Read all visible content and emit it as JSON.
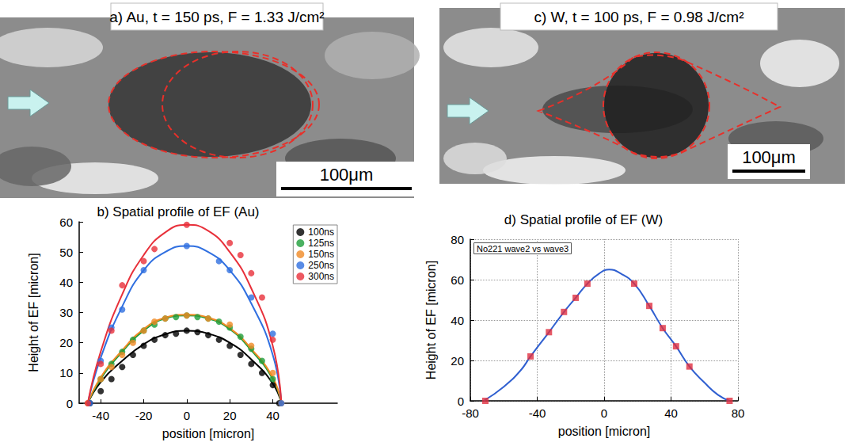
{
  "images": [
    {
      "title": "a) Au, t = 150 ps, F = 1.33 J/cm²",
      "scale_bar": "100μm"
    },
    {
      "title": "c) W, t = 100 ps, F = 0.98 J/cm²",
      "scale_bar": "100μm"
    }
  ],
  "chart_data": [
    {
      "type": "scatter",
      "title": "b) Spatial profile of EF (Au)",
      "x_label": "position [micron]",
      "y_label": "Height of EF [micron]",
      "xlim": [
        -50,
        70
      ],
      "xticks": [
        -40,
        -20,
        0,
        20,
        40
      ],
      "ylim": [
        0,
        60
      ],
      "yticks": [
        0,
        10,
        20,
        30,
        40,
        50,
        60
      ],
      "grid": false,
      "legend": "upper right",
      "marker": "circle",
      "series": [
        {
          "name": "100ns",
          "color": "#000000",
          "x": [
            -45,
            -40,
            -35,
            -30,
            -25,
            -20,
            -15,
            -10,
            -5,
            0,
            5,
            10,
            15,
            20,
            25,
            30,
            35,
            40,
            43
          ],
          "values": [
            0,
            4,
            8,
            12,
            16,
            19,
            21,
            22.5,
            23,
            24,
            23.5,
            22.5,
            21,
            19,
            16,
            13,
            10,
            6,
            0
          ],
          "fit_x": [
            -46,
            -40,
            -30,
            -20,
            -10,
            0,
            10,
            20,
            30,
            40,
            44
          ],
          "fit_values": [
            0,
            7,
            14,
            19.5,
            22.8,
            24,
            23,
            20,
            14.5,
            6.5,
            0
          ]
        },
        {
          "name": "125ns",
          "color": "#1e9e3a",
          "x": [
            -40,
            -35,
            -30,
            -25,
            -20,
            -15,
            -10,
            -5,
            0,
            5,
            10,
            15,
            20,
            25,
            30,
            35,
            40
          ],
          "values": [
            8,
            13,
            17,
            21,
            24,
            26,
            28,
            28.5,
            29,
            28.5,
            28,
            27,
            25,
            22,
            18,
            14,
            8
          ],
          "fit_x": [
            -46,
            -40,
            -30,
            -20,
            -10,
            0,
            10,
            20,
            30,
            40,
            44
          ],
          "fit_values": [
            0,
            8,
            17,
            24,
            28,
            29,
            28,
            24.5,
            17.5,
            8,
            0
          ]
        },
        {
          "name": "150ns",
          "color": "#f08a24",
          "x": [
            -46,
            -40,
            -35,
            -30,
            -25,
            -20,
            -15,
            -10,
            0,
            10,
            20,
            30,
            40,
            44
          ],
          "values": [
            0,
            8,
            12,
            16,
            20,
            24,
            27,
            28,
            29,
            28,
            26,
            19,
            10,
            0
          ],
          "fit_x": [
            -46,
            -40,
            -30,
            -20,
            -10,
            0,
            10,
            20,
            30,
            40,
            44
          ],
          "fit_values": [
            0,
            8.5,
            17.5,
            24.5,
            28.3,
            29.3,
            28.3,
            24.8,
            18,
            8.5,
            0
          ]
        },
        {
          "name": "250ns",
          "color": "#2f6fe0",
          "x": [
            -45,
            -40,
            -35,
            -30,
            -20,
            0,
            15,
            20,
            30,
            40,
            44
          ],
          "values": [
            0,
            14,
            25,
            31,
            44,
            52,
            47,
            44,
            35,
            23,
            0
          ],
          "fit_x": [
            -46,
            -40,
            -30,
            -20,
            -10,
            0,
            10,
            20,
            30,
            40,
            44
          ],
          "fit_values": [
            0,
            15,
            32,
            44,
            50,
            52,
            50,
            44,
            33,
            16,
            0
          ]
        },
        {
          "name": "300ns",
          "color": "#e8303a",
          "x": [
            -46,
            -40,
            -35,
            -30,
            -20,
            -15,
            0,
            20,
            25,
            30,
            35,
            40
          ],
          "values": [
            0,
            13,
            24,
            39,
            47,
            51,
            59,
            53,
            49,
            43,
            35,
            21
          ],
          "fit_x": [
            -46,
            -40,
            -30,
            -20,
            -10,
            0,
            10,
            20,
            30,
            40,
            44
          ],
          "fit_values": [
            0,
            17,
            36,
            49,
            56.5,
            59,
            57,
            50,
            38,
            19,
            0
          ]
        }
      ]
    },
    {
      "type": "scatter",
      "title": "d) Spatial profile of EF (W)",
      "x_label": "position [micron]",
      "y_label": "Height of EF [micron]",
      "annotation": "No221 wave2 vs wave3",
      "xlim": [
        -80,
        80
      ],
      "xticks": [
        -80,
        -40,
        0,
        40,
        80
      ],
      "ylim": [
        0,
        80
      ],
      "yticks": [
        0,
        20,
        40,
        60,
        80
      ],
      "grid": true,
      "marker": "square",
      "series": [
        {
          "color": "#e03040",
          "x": [
            -71,
            -44,
            -33,
            -24,
            -17,
            -10,
            18,
            27,
            35,
            43,
            51,
            75
          ],
          "values": [
            0,
            22,
            34,
            44,
            51,
            58,
            58,
            47,
            36,
            27,
            17,
            0
          ],
          "fit_color": "#2f5fd0",
          "fit_x": [
            -72,
            -60,
            -50,
            -44,
            -33,
            -24,
            -17,
            -10,
            -3,
            3,
            10,
            18,
            27,
            35,
            43,
            51,
            60,
            68,
            75
          ],
          "fit_values": [
            0,
            7,
            15,
            22,
            34,
            44,
            51,
            58,
            63,
            65,
            63,
            58,
            47,
            36,
            27,
            17,
            9,
            3,
            0
          ]
        }
      ]
    }
  ]
}
